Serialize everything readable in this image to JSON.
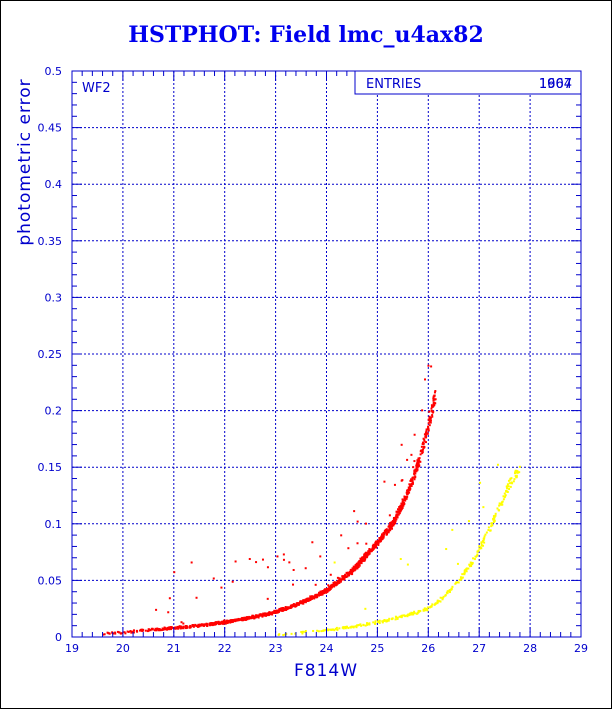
{
  "title": "HSTPHOT: Field lmc_u4ax82",
  "chart_data": {
    "type": "scatter",
    "title": "HSTPHOT: Field lmc_u4ax82",
    "xlabel": "F814W",
    "ylabel": "photometric error",
    "xlim": [
      19,
      29
    ],
    "ylim": [
      0,
      0.5
    ],
    "xticks": [
      "19",
      "20",
      "21",
      "22",
      "23",
      "24",
      "25",
      "26",
      "27",
      "28",
      "29"
    ],
    "yticks": [
      "0",
      "0.05",
      "0.1",
      "0.15",
      "0.2",
      "0.25",
      "0.3",
      "0.35",
      "0.4",
      "0.45",
      "0.5"
    ],
    "grid": true,
    "panel_label": "WF2",
    "stats_box": {
      "label": "ENTRIES",
      "values": [
        "1607",
        "1964"
      ]
    },
    "series": [
      {
        "color": "#ff0000",
        "description_points": [
          [
            19.4,
            0.002
          ],
          [
            20.0,
            0.004
          ],
          [
            20.5,
            0.006
          ],
          [
            21.0,
            0.008
          ],
          [
            21.5,
            0.01
          ],
          [
            22.0,
            0.013
          ],
          [
            22.5,
            0.017
          ],
          [
            23.0,
            0.022
          ],
          [
            23.5,
            0.03
          ],
          [
            24.0,
            0.041
          ],
          [
            24.5,
            0.058
          ],
          [
            25.0,
            0.083
          ],
          [
            25.3,
            0.1
          ],
          [
            25.5,
            0.118
          ],
          [
            25.7,
            0.14
          ],
          [
            25.85,
            0.16
          ],
          [
            26.0,
            0.185
          ],
          [
            26.15,
            0.215
          ]
        ]
      },
      {
        "color": "#ffff00",
        "description_points": [
          [
            23.0,
            0.002
          ],
          [
            23.5,
            0.004
          ],
          [
            24.0,
            0.006
          ],
          [
            24.5,
            0.009
          ],
          [
            25.0,
            0.013
          ],
          [
            25.5,
            0.018
          ],
          [
            26.0,
            0.025
          ],
          [
            26.3,
            0.035
          ],
          [
            26.6,
            0.05
          ],
          [
            26.9,
            0.068
          ],
          [
            27.2,
            0.095
          ],
          [
            27.6,
            0.135
          ],
          [
            27.8,
            0.15
          ]
        ]
      }
    ]
  }
}
